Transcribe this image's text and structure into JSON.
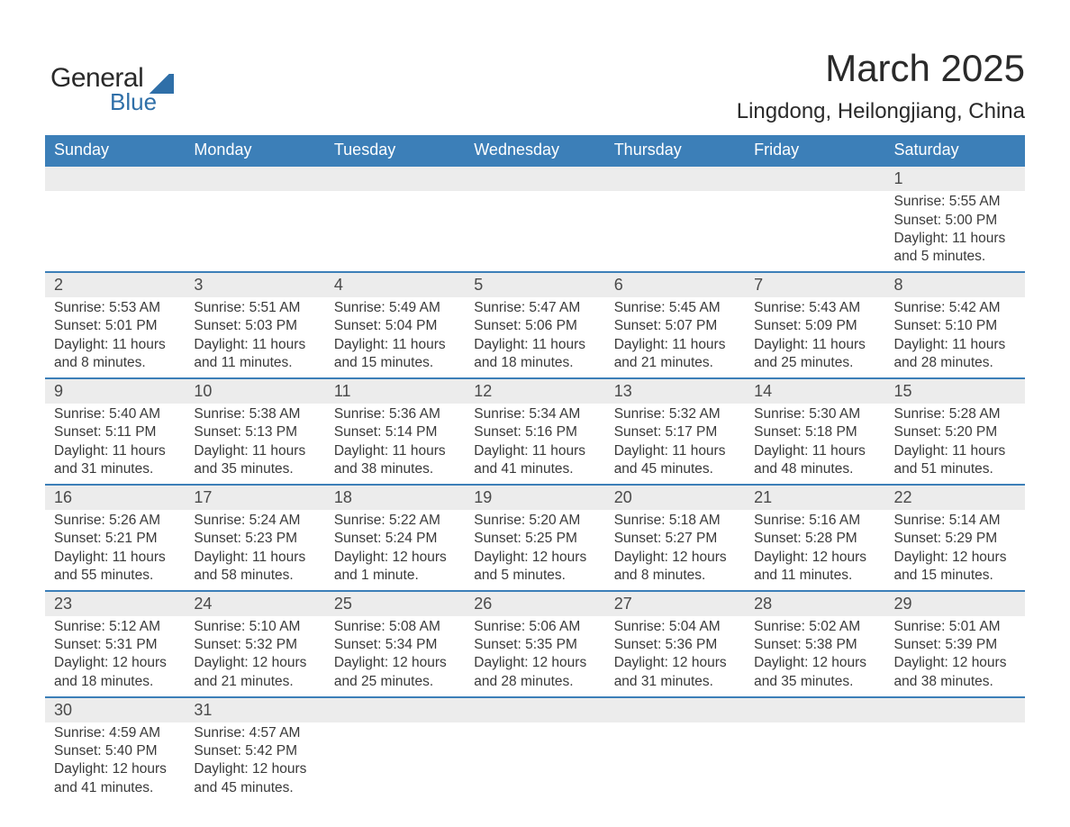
{
  "logo": {
    "text1": "General",
    "text2": "Blue"
  },
  "header": {
    "month_title": "March 2025",
    "location": "Lingdong, Heilongjiang, China"
  },
  "days_of_week": [
    "Sunday",
    "Monday",
    "Tuesday",
    "Wednesday",
    "Thursday",
    "Friday",
    "Saturday"
  ],
  "colors": {
    "header_bg": "#3c7fb8",
    "header_text": "#ffffff",
    "daynum_bg": "#ececec",
    "row_border": "#3c7fb8",
    "body_text": "#3a3a3a"
  },
  "weeks": [
    [
      null,
      null,
      null,
      null,
      null,
      null,
      {
        "n": "1",
        "sunrise": "Sunrise: 5:55 AM",
        "sunset": "Sunset: 5:00 PM",
        "day1": "Daylight: 11 hours",
        "day2": "and 5 minutes."
      }
    ],
    [
      {
        "n": "2",
        "sunrise": "Sunrise: 5:53 AM",
        "sunset": "Sunset: 5:01 PM",
        "day1": "Daylight: 11 hours",
        "day2": "and 8 minutes."
      },
      {
        "n": "3",
        "sunrise": "Sunrise: 5:51 AM",
        "sunset": "Sunset: 5:03 PM",
        "day1": "Daylight: 11 hours",
        "day2": "and 11 minutes."
      },
      {
        "n": "4",
        "sunrise": "Sunrise: 5:49 AM",
        "sunset": "Sunset: 5:04 PM",
        "day1": "Daylight: 11 hours",
        "day2": "and 15 minutes."
      },
      {
        "n": "5",
        "sunrise": "Sunrise: 5:47 AM",
        "sunset": "Sunset: 5:06 PM",
        "day1": "Daylight: 11 hours",
        "day2": "and 18 minutes."
      },
      {
        "n": "6",
        "sunrise": "Sunrise: 5:45 AM",
        "sunset": "Sunset: 5:07 PM",
        "day1": "Daylight: 11 hours",
        "day2": "and 21 minutes."
      },
      {
        "n": "7",
        "sunrise": "Sunrise: 5:43 AM",
        "sunset": "Sunset: 5:09 PM",
        "day1": "Daylight: 11 hours",
        "day2": "and 25 minutes."
      },
      {
        "n": "8",
        "sunrise": "Sunrise: 5:42 AM",
        "sunset": "Sunset: 5:10 PM",
        "day1": "Daylight: 11 hours",
        "day2": "and 28 minutes."
      }
    ],
    [
      {
        "n": "9",
        "sunrise": "Sunrise: 5:40 AM",
        "sunset": "Sunset: 5:11 PM",
        "day1": "Daylight: 11 hours",
        "day2": "and 31 minutes."
      },
      {
        "n": "10",
        "sunrise": "Sunrise: 5:38 AM",
        "sunset": "Sunset: 5:13 PM",
        "day1": "Daylight: 11 hours",
        "day2": "and 35 minutes."
      },
      {
        "n": "11",
        "sunrise": "Sunrise: 5:36 AM",
        "sunset": "Sunset: 5:14 PM",
        "day1": "Daylight: 11 hours",
        "day2": "and 38 minutes."
      },
      {
        "n": "12",
        "sunrise": "Sunrise: 5:34 AM",
        "sunset": "Sunset: 5:16 PM",
        "day1": "Daylight: 11 hours",
        "day2": "and 41 minutes."
      },
      {
        "n": "13",
        "sunrise": "Sunrise: 5:32 AM",
        "sunset": "Sunset: 5:17 PM",
        "day1": "Daylight: 11 hours",
        "day2": "and 45 minutes."
      },
      {
        "n": "14",
        "sunrise": "Sunrise: 5:30 AM",
        "sunset": "Sunset: 5:18 PM",
        "day1": "Daylight: 11 hours",
        "day2": "and 48 minutes."
      },
      {
        "n": "15",
        "sunrise": "Sunrise: 5:28 AM",
        "sunset": "Sunset: 5:20 PM",
        "day1": "Daylight: 11 hours",
        "day2": "and 51 minutes."
      }
    ],
    [
      {
        "n": "16",
        "sunrise": "Sunrise: 5:26 AM",
        "sunset": "Sunset: 5:21 PM",
        "day1": "Daylight: 11 hours",
        "day2": "and 55 minutes."
      },
      {
        "n": "17",
        "sunrise": "Sunrise: 5:24 AM",
        "sunset": "Sunset: 5:23 PM",
        "day1": "Daylight: 11 hours",
        "day2": "and 58 minutes."
      },
      {
        "n": "18",
        "sunrise": "Sunrise: 5:22 AM",
        "sunset": "Sunset: 5:24 PM",
        "day1": "Daylight: 12 hours",
        "day2": "and 1 minute."
      },
      {
        "n": "19",
        "sunrise": "Sunrise: 5:20 AM",
        "sunset": "Sunset: 5:25 PM",
        "day1": "Daylight: 12 hours",
        "day2": "and 5 minutes."
      },
      {
        "n": "20",
        "sunrise": "Sunrise: 5:18 AM",
        "sunset": "Sunset: 5:27 PM",
        "day1": "Daylight: 12 hours",
        "day2": "and 8 minutes."
      },
      {
        "n": "21",
        "sunrise": "Sunrise: 5:16 AM",
        "sunset": "Sunset: 5:28 PM",
        "day1": "Daylight: 12 hours",
        "day2": "and 11 minutes."
      },
      {
        "n": "22",
        "sunrise": "Sunrise: 5:14 AM",
        "sunset": "Sunset: 5:29 PM",
        "day1": "Daylight: 12 hours",
        "day2": "and 15 minutes."
      }
    ],
    [
      {
        "n": "23",
        "sunrise": "Sunrise: 5:12 AM",
        "sunset": "Sunset: 5:31 PM",
        "day1": "Daylight: 12 hours",
        "day2": "and 18 minutes."
      },
      {
        "n": "24",
        "sunrise": "Sunrise: 5:10 AM",
        "sunset": "Sunset: 5:32 PM",
        "day1": "Daylight: 12 hours",
        "day2": "and 21 minutes."
      },
      {
        "n": "25",
        "sunrise": "Sunrise: 5:08 AM",
        "sunset": "Sunset: 5:34 PM",
        "day1": "Daylight: 12 hours",
        "day2": "and 25 minutes."
      },
      {
        "n": "26",
        "sunrise": "Sunrise: 5:06 AM",
        "sunset": "Sunset: 5:35 PM",
        "day1": "Daylight: 12 hours",
        "day2": "and 28 minutes."
      },
      {
        "n": "27",
        "sunrise": "Sunrise: 5:04 AM",
        "sunset": "Sunset: 5:36 PM",
        "day1": "Daylight: 12 hours",
        "day2": "and 31 minutes."
      },
      {
        "n": "28",
        "sunrise": "Sunrise: 5:02 AM",
        "sunset": "Sunset: 5:38 PM",
        "day1": "Daylight: 12 hours",
        "day2": "and 35 minutes."
      },
      {
        "n": "29",
        "sunrise": "Sunrise: 5:01 AM",
        "sunset": "Sunset: 5:39 PM",
        "day1": "Daylight: 12 hours",
        "day2": "and 38 minutes."
      }
    ],
    [
      {
        "n": "30",
        "sunrise": "Sunrise: 4:59 AM",
        "sunset": "Sunset: 5:40 PM",
        "day1": "Daylight: 12 hours",
        "day2": "and 41 minutes."
      },
      {
        "n": "31",
        "sunrise": "Sunrise: 4:57 AM",
        "sunset": "Sunset: 5:42 PM",
        "day1": "Daylight: 12 hours",
        "day2": "and 45 minutes."
      },
      null,
      null,
      null,
      null,
      null
    ]
  ]
}
